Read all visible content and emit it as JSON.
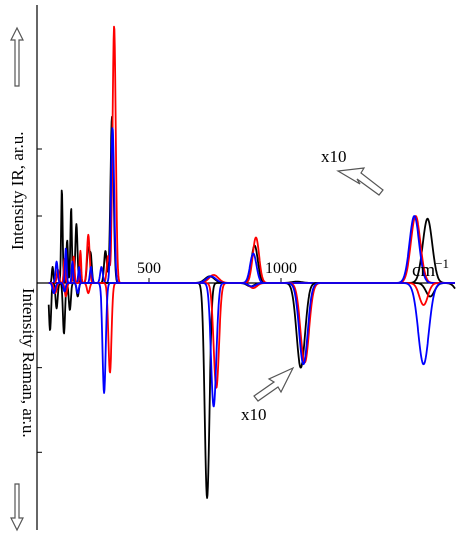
{
  "chart_data": {
    "type": "line",
    "x_ticks": [
      500,
      1000
    ],
    "x_range": [
      0,
      1600
    ],
    "x_unit": "cm",
    "x_unit_exponent": "−1",
    "top_axis_label": "Intensity IR, ar.u.",
    "bottom_axis_label": "Intensity Raman, ar.u.",
    "annotations": {
      "ir_scale": "x10",
      "raman_scale": "x10"
    },
    "colors": {
      "black": "#000000",
      "red": "#ff0000",
      "blue": "#0000ff"
    },
    "ir": {
      "ylim": [
        0,
        1.0
      ],
      "scale_marks": [
        0.5,
        0.25
      ],
      "series": [
        {
          "color": "#000000",
          "peaks": [
            [
              135,
              0.06,
              3
            ],
            [
              170,
              0.35,
              3
            ],
            [
              190,
              0.16,
              3
            ],
            [
              205,
              0.28,
              3
            ],
            [
              225,
              0.22,
              4
            ],
            [
              270,
              0.13,
              5
            ],
            [
              280,
              0.09,
              4
            ],
            [
              335,
              0.12,
              5
            ],
            [
              360,
              0.62,
              6
            ],
            [
              730,
              0.025,
              18
            ],
            [
              900,
              0.14,
              12
            ],
            [
              1060,
              0.005,
              20
            ],
            [
              1555,
              0.24,
              18
            ]
          ]
        },
        {
          "color": "#ff0000",
          "peaks": [
            [
              155,
              0.05,
              4
            ],
            [
              180,
              0.09,
              3
            ],
            [
              215,
              0.1,
              3
            ],
            [
              240,
              0.12,
              3
            ],
            [
              270,
              0.18,
              5
            ],
            [
              345,
              0.1,
              5
            ],
            [
              368,
              0.96,
              6
            ],
            [
              745,
              0.03,
              18
            ],
            [
              905,
              0.17,
              12
            ],
            [
              1510,
              0.25,
              18
            ]
          ]
        },
        {
          "color": "#0000ff",
          "peaks": [
            [
              150,
              0.08,
              4
            ],
            [
              185,
              0.13,
              3
            ],
            [
              210,
              0.08,
              3
            ],
            [
              235,
              0.06,
              3
            ],
            [
              280,
              0.06,
              4
            ],
            [
              320,
              0.06,
              5
            ],
            [
              362,
              0.58,
              6
            ],
            [
              735,
              0.025,
              18
            ],
            [
              895,
              0.11,
              12
            ],
            [
              1505,
              0.25,
              18
            ]
          ]
        }
      ]
    },
    "raman": {
      "ylim": [
        0,
        1.25
      ],
      "scale_marks": [
        0.5,
        1.0
      ],
      "series": [
        {
          "color": "#000000",
          "peaks": [
            [
              125,
              0.28,
              4
            ],
            [
              150,
              0.15,
              4
            ],
            [
              178,
              0.3,
              4
            ],
            [
              200,
              0.16,
              4
            ],
            [
              230,
              0.08,
              4
            ],
            [
              720,
              1.27,
              9
            ],
            [
              885,
              0.02,
              14
            ],
            [
              1075,
              0.5,
              16
            ],
            [
              1565,
              0.08,
              16
            ],
            [
              1690,
              0.11,
              20
            ]
          ]
        },
        {
          "color": "#ff0000",
          "peaks": [
            [
              145,
              0.06,
              5
            ],
            [
              185,
              0.08,
              4
            ],
            [
              270,
              0.06,
              5
            ],
            [
              352,
              0.53,
              6
            ],
            [
              755,
              0.62,
              10
            ],
            [
              895,
              0.03,
              14
            ],
            [
              1090,
              0.47,
              16
            ],
            [
              1540,
              0.13,
              16
            ]
          ]
        },
        {
          "color": "#0000ff",
          "peaks": [
            [
              140,
              0.06,
              5
            ],
            [
              180,
              0.05,
              4
            ],
            [
              230,
              0.06,
              4
            ],
            [
              330,
              0.65,
              6
            ],
            [
              745,
              0.73,
              10
            ],
            [
              890,
              0.02,
              14
            ],
            [
              1085,
              0.48,
              16
            ],
            [
              1540,
              0.48,
              20
            ]
          ]
        }
      ]
    }
  }
}
